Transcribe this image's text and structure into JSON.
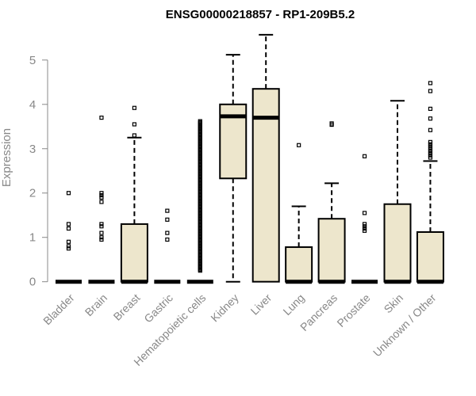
{
  "chart_data": {
    "type": "box",
    "title": "ENSG00000218857 - RP1-209B5.2",
    "xlabel": "",
    "ylabel": "Expression",
    "ylim": [
      0,
      5.75
    ],
    "yticks": [
      0,
      1,
      2,
      3,
      4,
      5
    ],
    "box_color": "#ede6cc",
    "categories": [
      "Bladder",
      "Brain",
      "Breast",
      "Gastric",
      "Hematopoietic cells",
      "Kidney",
      "Liver",
      "Lung",
      "Pancreas",
      "Prostate",
      "Skin",
      "Unknown / Other"
    ],
    "boxes": [
      {
        "name": "Bladder",
        "min": 0,
        "q1": 0,
        "median": 0,
        "q3": 0,
        "max": 0,
        "outliers": [
          2.0,
          1.3,
          1.2,
          0.9,
          0.8,
          0.75
        ]
      },
      {
        "name": "Brain",
        "min": 0,
        "q1": 0,
        "median": 0,
        "q3": 0,
        "max": 0,
        "outliers": [
          3.7,
          2.0,
          1.95,
          1.9,
          1.8,
          1.3,
          1.25,
          1.1,
          1.0,
          0.95
        ]
      },
      {
        "name": "Breast",
        "min": 0,
        "q1": 0,
        "median": 0,
        "q3": 1.3,
        "max": 3.25,
        "outliers": [
          3.92,
          3.55,
          3.3
        ]
      },
      {
        "name": "Gastric",
        "min": 0,
        "q1": 0,
        "median": 0,
        "q3": 0,
        "max": 0,
        "outliers": [
          1.6,
          1.4,
          1.1,
          0.95
        ]
      },
      {
        "name": "Hematopoietic cells",
        "min": 0,
        "q1": 0,
        "median": 0,
        "q3": 0,
        "max": 0,
        "outliers_range": [
          0.25,
          3.62
        ]
      },
      {
        "name": "Kidney",
        "min": 0,
        "q1": 2.33,
        "median": 3.73,
        "q3": 4.0,
        "max": 5.12,
        "outliers": []
      },
      {
        "name": "Liver",
        "min": 0,
        "q1": 0,
        "median": 3.7,
        "q3": 4.35,
        "max": 5.57,
        "outliers": []
      },
      {
        "name": "Lung",
        "min": 0,
        "q1": 0,
        "median": 0,
        "q3": 0.78,
        "max": 1.7,
        "outliers": [
          3.08
        ]
      },
      {
        "name": "Pancreas",
        "min": 0,
        "q1": 0,
        "median": 0,
        "q3": 1.42,
        "max": 2.22,
        "outliers": [
          3.57,
          3.54
        ]
      },
      {
        "name": "Prostate",
        "min": 0,
        "q1": 0,
        "median": 0,
        "q3": 0,
        "max": 0,
        "outliers": [
          2.83,
          1.55,
          1.3,
          1.25,
          1.2,
          1.15
        ]
      },
      {
        "name": "Skin",
        "min": 0,
        "q1": 0,
        "median": 0,
        "q3": 1.75,
        "max": 4.08,
        "outliers": []
      },
      {
        "name": "Unknown / Other",
        "min": 0,
        "q1": 0,
        "median": 0,
        "q3": 1.12,
        "max": 2.72,
        "outliers": [
          4.48,
          4.3,
          3.9,
          3.68,
          3.42,
          3.15,
          3.1,
          3.05,
          3.0,
          2.95,
          2.9,
          2.85,
          2.8
        ]
      }
    ]
  }
}
